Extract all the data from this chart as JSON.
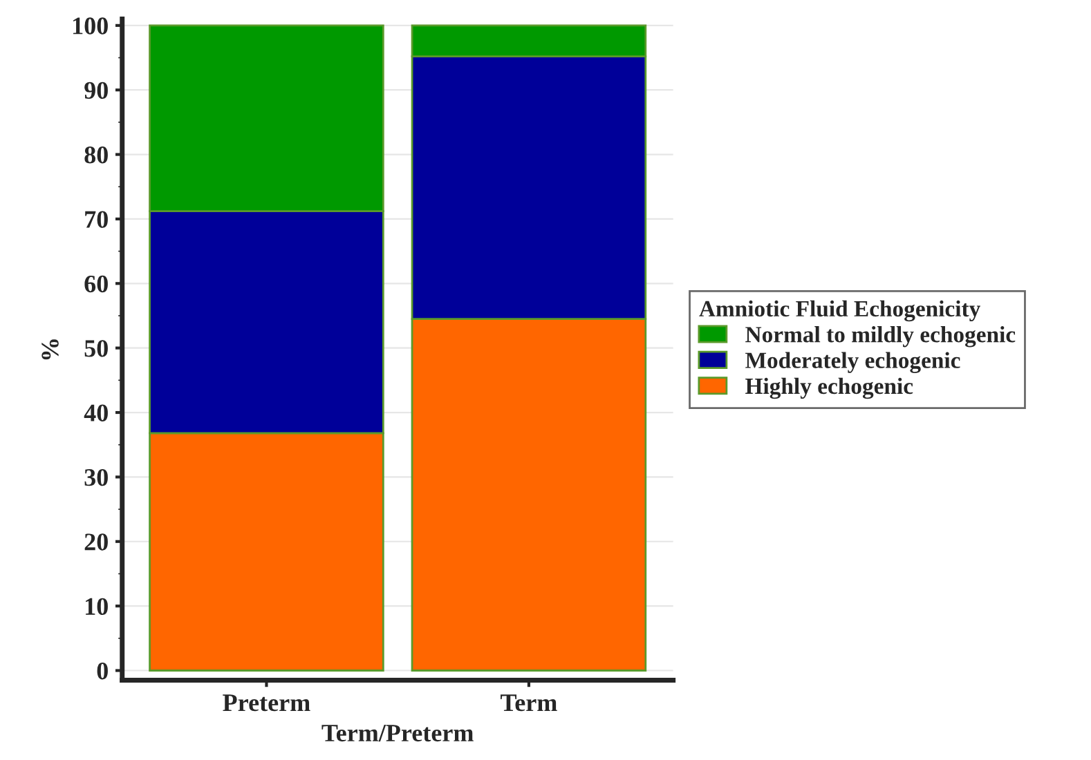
{
  "chart_data": {
    "type": "bar",
    "stacked": true,
    "xlabel": "Term/Preterm",
    "ylabel": "%",
    "legend_title": "Amniotic Fluid Echogenicity",
    "legend": "right",
    "categories": [
      "Preterm",
      "Term"
    ],
    "series": [
      {
        "name": "Highly echogenic",
        "color": "#ff6600",
        "values": [
          36.8,
          54.5
        ]
      },
      {
        "name": "Moderately echogenic",
        "color": "#000099",
        "values": [
          34.4,
          40.7
        ]
      },
      {
        "name": "Normal to mildly echogenic",
        "color": "#009900",
        "values": [
          28.8,
          4.8
        ]
      }
    ],
    "ylim": [
      -1.5,
      101
    ],
    "yticks": [
      0,
      10,
      20,
      30,
      40,
      50,
      60,
      70,
      80,
      90,
      100
    ],
    "grid": "y"
  }
}
